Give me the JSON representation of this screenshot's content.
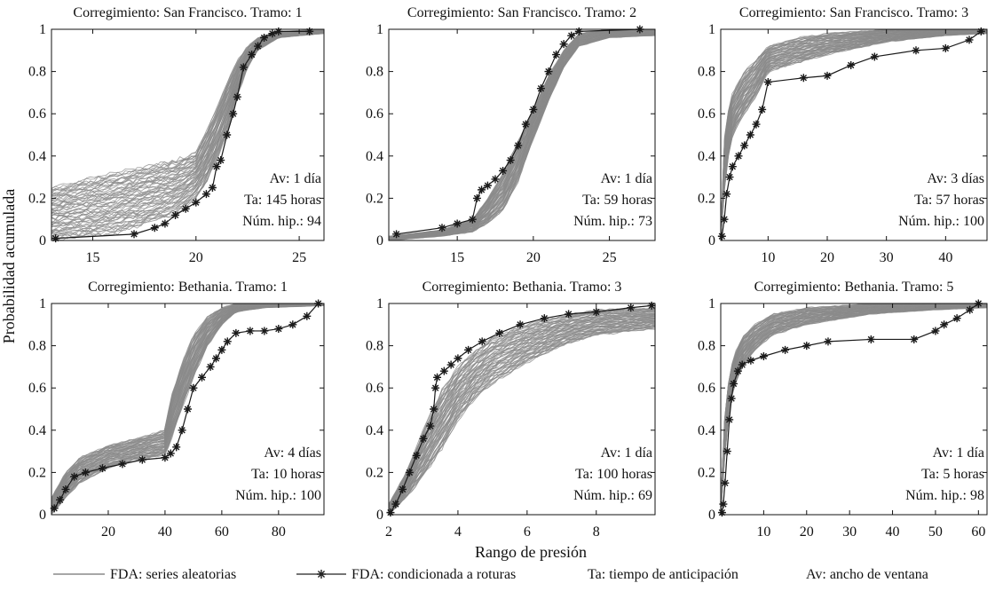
{
  "figure": {
    "ylabel": "Probabilidad acumulada",
    "xlabel": "Rango de presión"
  },
  "legend": [
    {
      "key": "random",
      "label": "FDA: series aleatorias",
      "color": "#8a8a8a"
    },
    {
      "key": "conditional",
      "label": "FDA: condicionada a roturas",
      "color": "#222222",
      "marker": "asterisk"
    },
    {
      "key": "ta",
      "label": "Ta: tiempo de anticipación"
    },
    {
      "key": "av",
      "label": "Av: ancho de ventana"
    }
  ],
  "colors": {
    "random": "#8a8a8a",
    "conditional": "#1a1a1a",
    "axis": "#111111"
  },
  "chart_data": [
    {
      "type": "line",
      "title": "Corregimiento: San Francisco. Tramo: 1",
      "xlim": [
        13,
        26.2
      ],
      "ylim": [
        0,
        1
      ],
      "xticks": [
        15,
        20,
        25
      ],
      "yticks": [
        0,
        0.2,
        0.4,
        0.6,
        0.8,
        1
      ],
      "ytick_labels": [
        "0",
        "0.2",
        "0.4",
        "0.6",
        "0.8",
        "1"
      ],
      "annotations": [
        "Av: 1 día",
        "Ta: 145 horas",
        "Núm. hip.: 94"
      ],
      "series": [
        {
          "name": "FDA: condicionada a roturas",
          "x": [
            13.2,
            17,
            18,
            18.5,
            19,
            19.5,
            20,
            20.5,
            20.8,
            21,
            21.2,
            21.5,
            21.8,
            22,
            22.3,
            22.7,
            23,
            23.3,
            23.7,
            24,
            25.5
          ],
          "y": [
            0.01,
            0.03,
            0.06,
            0.08,
            0.12,
            0.15,
            0.18,
            0.22,
            0.25,
            0.35,
            0.38,
            0.5,
            0.6,
            0.68,
            0.82,
            0.88,
            0.92,
            0.96,
            0.98,
            0.99,
            0.99
          ]
        }
      ],
      "random_band": {
        "name": "FDA: series aleatorias",
        "count": 94,
        "x": [
          13,
          16,
          19,
          20,
          20.5,
          21,
          21.5,
          22,
          22.5,
          23,
          24,
          26.2
        ],
        "lower": [
          0,
          0.03,
          0.12,
          0.2,
          0.27,
          0.38,
          0.5,
          0.68,
          0.82,
          0.9,
          0.96,
          0.98
        ],
        "upper": [
          0.25,
          0.32,
          0.38,
          0.42,
          0.52,
          0.62,
          0.75,
          0.85,
          0.92,
          0.96,
          0.99,
          1.0
        ]
      }
    },
    {
      "type": "line",
      "title": "Corregimiento: San Francisco. Tramo: 2",
      "xlim": [
        10.5,
        28
      ],
      "ylim": [
        0,
        1
      ],
      "xticks": [
        15,
        20,
        25
      ],
      "yticks": [
        0,
        0.2,
        0.4,
        0.6,
        0.8,
        1
      ],
      "ytick_labels": [
        "0",
        "0.2",
        "0.4",
        "0.6",
        "0.8",
        "1"
      ],
      "annotations": [
        "Av: 1 día",
        "Ta: 59 horas",
        "Núm. hip.: 73"
      ],
      "series": [
        {
          "name": "FDA: condicionada a roturas",
          "x": [
            11,
            14,
            15,
            16,
            16.3,
            16.6,
            17,
            17.5,
            18,
            18.5,
            19,
            19.5,
            20,
            20.5,
            21,
            21.5,
            22,
            22.5,
            23,
            27
          ],
          "y": [
            0.03,
            0.06,
            0.08,
            0.1,
            0.2,
            0.24,
            0.26,
            0.29,
            0.33,
            0.38,
            0.45,
            0.55,
            0.62,
            0.72,
            0.8,
            0.88,
            0.93,
            0.97,
            0.99,
            1.0
          ]
        }
      ],
      "random_band": {
        "name": "FDA: series aleatorias",
        "count": 73,
        "x": [
          10.5,
          14,
          16,
          17,
          18,
          19,
          20,
          21,
          22,
          23,
          25,
          28
        ],
        "lower": [
          0,
          0.02,
          0.04,
          0.08,
          0.14,
          0.28,
          0.48,
          0.66,
          0.82,
          0.92,
          0.96,
          0.97
        ],
        "upper": [
          0.02,
          0.05,
          0.1,
          0.2,
          0.32,
          0.47,
          0.62,
          0.78,
          0.9,
          0.98,
          1.0,
          1.0
        ]
      }
    },
    {
      "type": "line",
      "title": "Corregimiento: San Francisco. Tramo: 3",
      "xlim": [
        2,
        47
      ],
      "ylim": [
        0,
        1
      ],
      "xticks": [
        10,
        20,
        30,
        40
      ],
      "yticks": [
        0,
        0.2,
        0.4,
        0.6,
        0.8,
        1
      ],
      "ytick_labels": [
        "0",
        "0.2",
        "0.4",
        "0.6",
        "0.8",
        "1"
      ],
      "annotations": [
        "Av: 3 días",
        "Ta: 57 horas",
        "Núm. hip.: 100"
      ],
      "series": [
        {
          "name": "FDA: condicionada a roturas",
          "x": [
            2.2,
            2.6,
            3,
            3.5,
            4,
            5,
            6,
            7,
            8,
            9,
            10,
            16,
            20,
            24,
            28,
            35,
            40,
            44,
            46
          ],
          "y": [
            0.02,
            0.1,
            0.22,
            0.3,
            0.35,
            0.4,
            0.45,
            0.5,
            0.55,
            0.62,
            0.75,
            0.77,
            0.78,
            0.83,
            0.87,
            0.9,
            0.91,
            0.95,
            0.99
          ]
        }
      ],
      "random_band": {
        "name": "FDA: series aleatorias",
        "count": 100,
        "x": [
          2,
          2.5,
          3,
          4,
          6,
          8,
          10,
          15,
          20,
          30,
          40,
          47
        ],
        "lower": [
          0,
          0.2,
          0.35,
          0.5,
          0.6,
          0.68,
          0.8,
          0.84,
          0.88,
          0.94,
          0.97,
          0.98
        ],
        "upper": [
          0.05,
          0.45,
          0.58,
          0.7,
          0.8,
          0.86,
          0.92,
          0.96,
          0.98,
          1.0,
          1.0,
          1.0
        ]
      }
    },
    {
      "type": "line",
      "title": "Corregimiento: Bethania. Tramo: 1",
      "xlim": [
        0,
        96
      ],
      "ylim": [
        0,
        1
      ],
      "xticks": [
        20,
        40,
        60,
        80
      ],
      "yticks": [
        0,
        0.2,
        0.4,
        0.6,
        0.8,
        1
      ],
      "ytick_labels": [
        "0",
        "0.2",
        "0.4",
        "0.6",
        "0.8",
        "1"
      ],
      "annotations": [
        "Av: 4 días",
        "Ta: 10 horas",
        "Núm. hip.: 100"
      ],
      "series": [
        {
          "name": "FDA: condicionada a roturas",
          "x": [
            1,
            3,
            5,
            8,
            12,
            18,
            25,
            32,
            40,
            42,
            44,
            46,
            48,
            50,
            53,
            56,
            58,
            60,
            62,
            65,
            70,
            75,
            80,
            85,
            90,
            94
          ],
          "y": [
            0.03,
            0.07,
            0.12,
            0.18,
            0.2,
            0.22,
            0.24,
            0.26,
            0.27,
            0.29,
            0.32,
            0.4,
            0.5,
            0.6,
            0.65,
            0.7,
            0.74,
            0.78,
            0.82,
            0.86,
            0.87,
            0.87,
            0.88,
            0.9,
            0.94,
            1.0
          ]
        }
      ],
      "random_band": {
        "name": "FDA: series aleatorias",
        "count": 100,
        "x": [
          0,
          5,
          10,
          20,
          30,
          40,
          42,
          46,
          50,
          55,
          60,
          65,
          75,
          96
        ],
        "lower": [
          0,
          0.08,
          0.15,
          0.22,
          0.26,
          0.28,
          0.35,
          0.5,
          0.65,
          0.8,
          0.9,
          0.96,
          0.98,
          0.99
        ],
        "upper": [
          0.08,
          0.2,
          0.27,
          0.33,
          0.36,
          0.4,
          0.55,
          0.72,
          0.85,
          0.94,
          0.98,
          1.0,
          1.0,
          1.0
        ]
      }
    },
    {
      "type": "line",
      "title": "Corregimiento: Bethania. Tramo: 3",
      "xlim": [
        2,
        9.7
      ],
      "ylim": [
        0,
        1
      ],
      "xticks": [
        2,
        4,
        6,
        8
      ],
      "yticks": [
        0,
        0.2,
        0.4,
        0.6,
        0.8,
        1
      ],
      "ytick_labels": [
        "0",
        "0.2",
        "0.4",
        "0.6",
        "0.8",
        "1"
      ],
      "annotations": [
        "Av: 1 día",
        "Ta: 100 horas",
        "Núm. hip.: 69"
      ],
      "series": [
        {
          "name": "FDA: condicionada a roturas",
          "x": [
            2.05,
            2.2,
            2.4,
            2.6,
            2.8,
            3.0,
            3.2,
            3.3,
            3.35,
            3.4,
            3.6,
            3.8,
            4.0,
            4.3,
            4.7,
            5.2,
            5.8,
            6.5,
            7.2,
            8.0,
            9.0,
            9.6
          ],
          "y": [
            0.01,
            0.05,
            0.12,
            0.2,
            0.28,
            0.36,
            0.42,
            0.5,
            0.6,
            0.65,
            0.68,
            0.71,
            0.74,
            0.78,
            0.82,
            0.86,
            0.9,
            0.93,
            0.95,
            0.96,
            0.98,
            0.99
          ]
        }
      ],
      "random_band": {
        "name": "FDA: series aleatorias",
        "count": 69,
        "x": [
          2,
          2.5,
          3,
          3.5,
          4,
          4.5,
          5,
          6,
          7,
          8,
          9.7
        ],
        "lower": [
          0,
          0.08,
          0.18,
          0.3,
          0.45,
          0.55,
          0.62,
          0.72,
          0.8,
          0.85,
          0.88
        ],
        "upper": [
          0.05,
          0.2,
          0.4,
          0.58,
          0.7,
          0.78,
          0.84,
          0.9,
          0.94,
          0.97,
          0.98
        ]
      }
    },
    {
      "type": "line",
      "title": "Corregimiento: Bethania. Tramo: 5",
      "xlim": [
        0,
        62
      ],
      "ylim": [
        0,
        1
      ],
      "xticks": [
        10,
        20,
        30,
        40,
        50,
        60
      ],
      "yticks": [
        0,
        0.2,
        0.4,
        0.6,
        0.8,
        1
      ],
      "ytick_labels": [
        "0",
        "0.2",
        "0.4",
        "0.6",
        "0.8",
        "1"
      ],
      "annotations": [
        "Av: 1 día",
        "Ta: 5 horas",
        "Núm. hip.: 98"
      ],
      "series": [
        {
          "name": "FDA: condicionada a roturas",
          "x": [
            0.3,
            0.6,
            1,
            1.5,
            2,
            2.5,
            3,
            4,
            5,
            7,
            10,
            15,
            20,
            25,
            35,
            45,
            50,
            52,
            55,
            58,
            60
          ],
          "y": [
            0.01,
            0.05,
            0.15,
            0.3,
            0.45,
            0.55,
            0.62,
            0.68,
            0.71,
            0.73,
            0.75,
            0.78,
            0.8,
            0.82,
            0.83,
            0.83,
            0.87,
            0.9,
            0.93,
            0.97,
            1.0
          ]
        }
      ],
      "random_band": {
        "name": "FDA: series aleatorias",
        "count": 98,
        "x": [
          0,
          0.5,
          1,
          2,
          3,
          5,
          8,
          12,
          20,
          35,
          50,
          62
        ],
        "lower": [
          0,
          0.1,
          0.3,
          0.5,
          0.6,
          0.7,
          0.78,
          0.85,
          0.9,
          0.95,
          0.97,
          0.98
        ],
        "upper": [
          0.05,
          0.3,
          0.5,
          0.66,
          0.75,
          0.84,
          0.9,
          0.95,
          0.98,
          1.0,
          1.0,
          1.0
        ]
      }
    }
  ]
}
